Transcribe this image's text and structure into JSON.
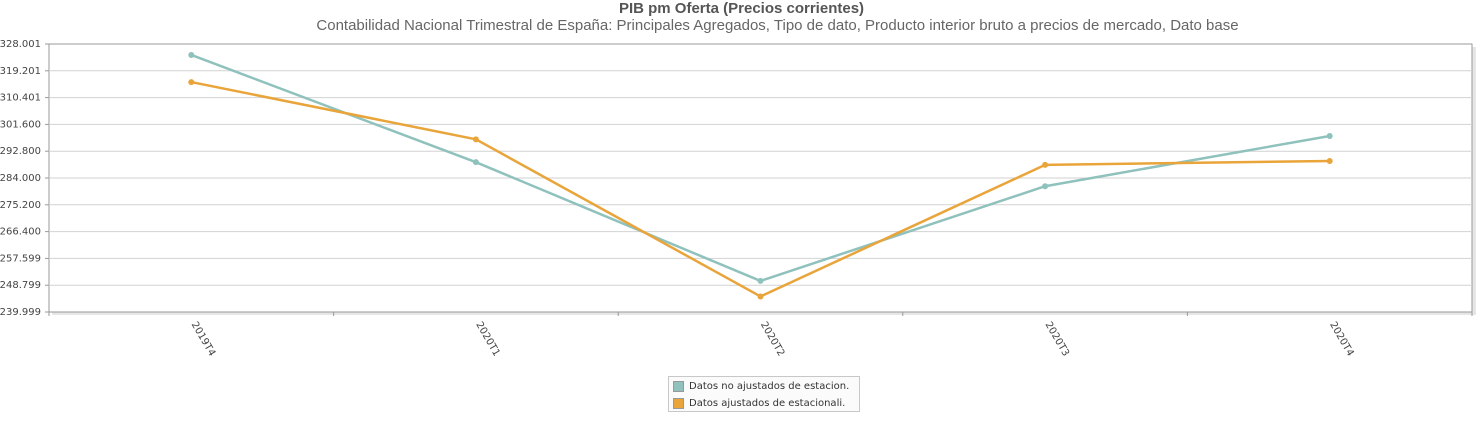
{
  "chart_data": {
    "type": "line",
    "title": "PIB pm Oferta (Precios corrientes)",
    "subtitle": "Contabilidad Nacional Trimestral de España: Principales Agregados, Tipo de dato, Producto interior bruto a precios de mercado, Dato base",
    "xlabel": "",
    "ylabel": "",
    "categories": [
      "2019T4",
      "2020T1",
      "2020T2",
      "2020T3",
      "2020T4"
    ],
    "y_ticks": [
      "328.001",
      "319.201",
      "310.401",
      "301.600",
      "292.800",
      "284.000",
      "275.200",
      "266.400",
      "257.599",
      "248.799",
      "239.999"
    ],
    "ylim": [
      239.999,
      328.001
    ],
    "grid": true,
    "legend_position": "bottom",
    "series": [
      {
        "name": "Datos no ajustados de estacion.",
        "color": "#8fc1bd",
        "values": [
          324.4,
          289.2,
          250.2,
          281.3,
          297.8
        ]
      },
      {
        "name": "Datos ajustados de estacionali.",
        "color": "#e9a43a",
        "values": [
          315.5,
          296.7,
          245.1,
          288.3,
          289.6
        ]
      }
    ]
  }
}
